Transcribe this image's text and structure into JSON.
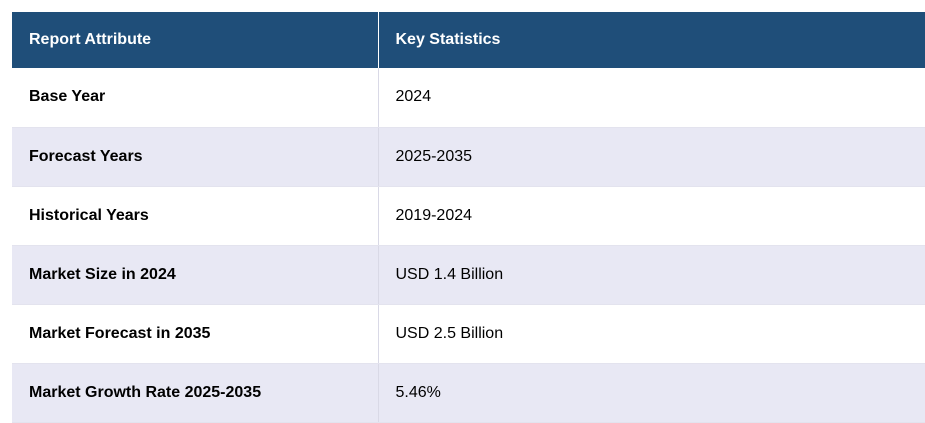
{
  "table": {
    "headers": [
      "Report Attribute",
      "Key Statistics"
    ],
    "rows": [
      {
        "attribute": "Base Year",
        "value": "2024"
      },
      {
        "attribute": "Forecast Years",
        "value": "2025-2035"
      },
      {
        "attribute": "Historical Years",
        "value": "2019-2024"
      },
      {
        "attribute": "Market Size in 2024",
        "value": "USD 1.4 Billion"
      },
      {
        "attribute": "Market Forecast in 2035",
        "value": "USD 2.5 Billion"
      },
      {
        "attribute": "Market Growth Rate 2025-2035",
        "value": "5.46%"
      }
    ]
  },
  "colors": {
    "header_bg": "#1f4e79",
    "header_text": "#ffffff",
    "row_alt_bg": "#e8e8f4"
  }
}
